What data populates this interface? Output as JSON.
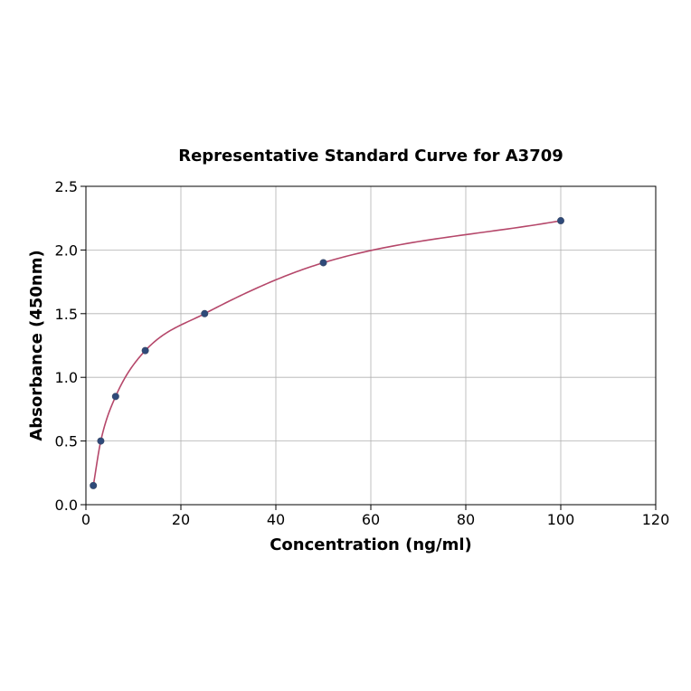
{
  "chart_data": {
    "type": "scatter",
    "title": "Representative Standard Curve for A3709",
    "xlabel": "Concentration (ng/ml)",
    "ylabel": "Absorbance (450nm)",
    "xlim": [
      0,
      120
    ],
    "ylim": [
      0,
      2.5
    ],
    "x_ticks": [
      "0",
      "20",
      "40",
      "60",
      "80",
      "100",
      "120"
    ],
    "y_ticks": [
      "0.0",
      "0.5",
      "1.0",
      "1.5",
      "2.0",
      "2.5"
    ],
    "grid": true,
    "series": [
      {
        "points": [
          {
            "x": 1.56,
            "y": 0.15
          },
          {
            "x": 3.13,
            "y": 0.5
          },
          {
            "x": 6.25,
            "y": 0.85
          },
          {
            "x": 12.5,
            "y": 1.21
          },
          {
            "x": 25,
            "y": 1.5
          },
          {
            "x": 50,
            "y": 1.9
          },
          {
            "x": 100,
            "y": 2.23
          }
        ],
        "marker_color": "#2e4a7a",
        "line_color": "#b5476a"
      }
    ]
  }
}
